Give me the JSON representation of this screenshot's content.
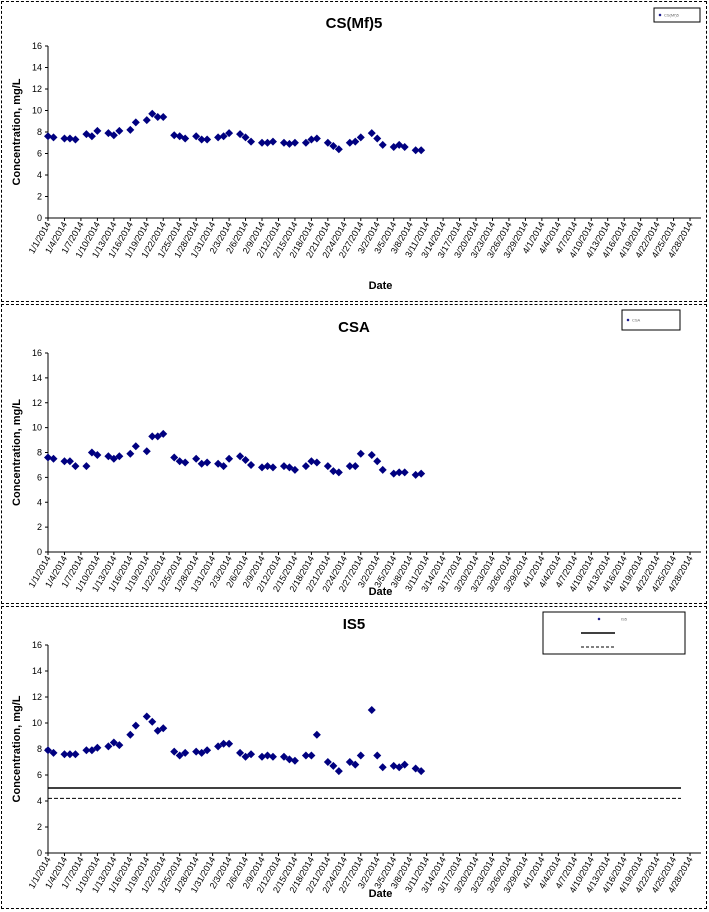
{
  "colors": {
    "marker": "#000080",
    "axis": "#000000",
    "limit": "#000000"
  },
  "chart_data": [
    {
      "type": "scatter",
      "title": "CS(Mf)5",
      "xlabel": "Date",
      "ylabel": "Concentration, mg/L",
      "ylim": [
        0,
        16
      ],
      "yticks": [
        "0",
        "2",
        "4",
        "6",
        "8",
        "10",
        "12",
        "14",
        "16"
      ],
      "xticks": [
        "1/1/2014",
        "1/4/2014",
        "1/7/2014",
        "1/10/2014",
        "1/13/2014",
        "1/16/2014",
        "1/19/2014",
        "1/22/2014",
        "1/25/2014",
        "1/28/2014",
        "1/31/2014",
        "2/3/2014",
        "2/6/2014",
        "2/9/2014",
        "2/12/2014",
        "2/15/2014",
        "2/18/2014",
        "2/21/2014",
        "2/24/2014",
        "2/27/2014",
        "3/2/2014",
        "3/5/2014",
        "3/8/2014",
        "3/11/2014",
        "3/14/2014",
        "3/17/2014",
        "3/20/2014",
        "3/23/2014",
        "3/26/2014",
        "3/29/2014",
        "4/1/2014",
        "4/4/2014",
        "4/7/2014",
        "4/10/2014",
        "4/13/2014",
        "4/16/2014",
        "4/19/2014",
        "4/22/2014",
        "4/25/2014",
        "4/28/2014"
      ],
      "legend": {
        "position": "top-right",
        "entries": [
          "CS(Mf)5"
        ]
      },
      "series": [
        {
          "name": "CS(Mf)5",
          "points": [
            [
              "2014-01-01",
              7.6
            ],
            [
              "2014-01-02",
              7.5
            ],
            [
              "2014-01-04",
              7.4
            ],
            [
              "2014-01-05",
              7.4
            ],
            [
              "2014-01-06",
              7.3
            ],
            [
              "2014-01-08",
              7.8
            ],
            [
              "2014-01-09",
              7.6
            ],
            [
              "2014-01-10",
              8.1
            ],
            [
              "2014-01-12",
              7.9
            ],
            [
              "2014-01-13",
              7.7
            ],
            [
              "2014-01-14",
              8.1
            ],
            [
              "2014-01-16",
              8.2
            ],
            [
              "2014-01-17",
              8.9
            ],
            [
              "2014-01-19",
              9.1
            ],
            [
              "2014-01-20",
              9.7
            ],
            [
              "2014-01-21",
              9.4
            ],
            [
              "2014-01-22",
              9.4
            ],
            [
              "2014-01-24",
              7.7
            ],
            [
              "2014-01-25",
              7.6
            ],
            [
              "2014-01-26",
              7.4
            ],
            [
              "2014-01-28",
              7.6
            ],
            [
              "2014-01-29",
              7.3
            ],
            [
              "2014-01-30",
              7.3
            ],
            [
              "2014-02-01",
              7.5
            ],
            [
              "2014-02-02",
              7.6
            ],
            [
              "2014-02-03",
              7.9
            ],
            [
              "2014-02-05",
              7.8
            ],
            [
              "2014-02-06",
              7.5
            ],
            [
              "2014-02-07",
              7.1
            ],
            [
              "2014-02-09",
              7.0
            ],
            [
              "2014-02-10",
              7.0
            ],
            [
              "2014-02-11",
              7.1
            ],
            [
              "2014-02-13",
              7.0
            ],
            [
              "2014-02-14",
              6.9
            ],
            [
              "2014-02-15",
              7.0
            ],
            [
              "2014-02-17",
              7.0
            ],
            [
              "2014-02-18",
              7.3
            ],
            [
              "2014-02-19",
              7.4
            ],
            [
              "2014-02-21",
              7.0
            ],
            [
              "2014-02-22",
              6.7
            ],
            [
              "2014-02-23",
              6.4
            ],
            [
              "2014-02-25",
              7.0
            ],
            [
              "2014-02-26",
              7.1
            ],
            [
              "2014-02-27",
              7.5
            ],
            [
              "2014-03-01",
              7.9
            ],
            [
              "2014-03-02",
              7.4
            ],
            [
              "2014-03-03",
              6.8
            ],
            [
              "2014-03-05",
              6.6
            ],
            [
              "2014-03-06",
              6.8
            ],
            [
              "2014-03-07",
              6.6
            ],
            [
              "2014-03-09",
              6.3
            ],
            [
              "2014-03-10",
              6.3
            ]
          ]
        }
      ]
    },
    {
      "type": "scatter",
      "title": "CSA",
      "xlabel": "Date",
      "ylabel": "Concentration, mg/L",
      "ylim": [
        0,
        16
      ],
      "yticks": [
        "0",
        "2",
        "4",
        "6",
        "8",
        "10",
        "12",
        "14",
        "16"
      ],
      "xticks": [
        "1/1/2014",
        "1/4/2014",
        "1/7/2014",
        "1/10/2014",
        "1/13/2014",
        "1/16/2014",
        "1/19/2014",
        "1/22/2014",
        "1/25/2014",
        "1/28/2014",
        "1/31/2014",
        "2/3/2014",
        "2/6/2014",
        "2/9/2014",
        "2/12/2014",
        "2/15/2014",
        "2/18/2014",
        "2/21/2014",
        "2/24/2014",
        "2/27/2014",
        "3/2/2014",
        "3/5/2014",
        "3/8/2014",
        "3/11/2014",
        "3/14/2014",
        "3/17/2014",
        "3/20/2014",
        "3/23/2014",
        "3/26/2014",
        "3/29/2014",
        "4/1/2014",
        "4/4/2014",
        "4/7/2014",
        "4/10/2014",
        "4/13/2014",
        "4/16/2014",
        "4/19/2014",
        "4/22/2014",
        "4/25/2014",
        "4/28/2014"
      ],
      "legend": {
        "position": "top-right",
        "entries": [
          "CSA"
        ]
      },
      "series": [
        {
          "name": "CSA",
          "points": [
            [
              "2014-01-01",
              7.6
            ],
            [
              "2014-01-02",
              7.5
            ],
            [
              "2014-01-04",
              7.3
            ],
            [
              "2014-01-05",
              7.3
            ],
            [
              "2014-01-06",
              6.9
            ],
            [
              "2014-01-08",
              6.9
            ],
            [
              "2014-01-09",
              8.0
            ],
            [
              "2014-01-10",
              7.8
            ],
            [
              "2014-01-12",
              7.7
            ],
            [
              "2014-01-13",
              7.5
            ],
            [
              "2014-01-14",
              7.7
            ],
            [
              "2014-01-16",
              7.9
            ],
            [
              "2014-01-17",
              8.5
            ],
            [
              "2014-01-19",
              8.1
            ],
            [
              "2014-01-20",
              9.3
            ],
            [
              "2014-01-21",
              9.3
            ],
            [
              "2014-01-22",
              9.5
            ],
            [
              "2014-01-24",
              7.6
            ],
            [
              "2014-01-25",
              7.3
            ],
            [
              "2014-01-26",
              7.2
            ],
            [
              "2014-01-28",
              7.5
            ],
            [
              "2014-01-29",
              7.1
            ],
            [
              "2014-01-30",
              7.2
            ],
            [
              "2014-02-01",
              7.1
            ],
            [
              "2014-02-02",
              6.9
            ],
            [
              "2014-02-03",
              7.5
            ],
            [
              "2014-02-05",
              7.7
            ],
            [
              "2014-02-06",
              7.4
            ],
            [
              "2014-02-07",
              7.0
            ],
            [
              "2014-02-09",
              6.8
            ],
            [
              "2014-02-10",
              6.9
            ],
            [
              "2014-02-11",
              6.8
            ],
            [
              "2014-02-13",
              6.9
            ],
            [
              "2014-02-14",
              6.8
            ],
            [
              "2014-02-15",
              6.6
            ],
            [
              "2014-02-17",
              6.9
            ],
            [
              "2014-02-18",
              7.3
            ],
            [
              "2014-02-19",
              7.2
            ],
            [
              "2014-02-21",
              6.9
            ],
            [
              "2014-02-22",
              6.5
            ],
            [
              "2014-02-23",
              6.4
            ],
            [
              "2014-02-25",
              6.9
            ],
            [
              "2014-02-26",
              6.9
            ],
            [
              "2014-02-27",
              7.9
            ],
            [
              "2014-03-01",
              7.8
            ],
            [
              "2014-03-02",
              7.3
            ],
            [
              "2014-03-03",
              6.6
            ],
            [
              "2014-03-05",
              6.3
            ],
            [
              "2014-03-06",
              6.4
            ],
            [
              "2014-03-07",
              6.4
            ],
            [
              "2014-03-09",
              6.2
            ],
            [
              "2014-03-10",
              6.3
            ]
          ]
        }
      ]
    },
    {
      "type": "scatter",
      "title": "IS5",
      "xlabel": "Date",
      "ylabel": "Concentration, mg/L",
      "ylim": [
        0,
        16
      ],
      "yticks": [
        "0",
        "2",
        "4",
        "6",
        "8",
        "10",
        "12",
        "14",
        "16"
      ],
      "xticks": [
        "1/1/2014",
        "1/4/2014",
        "1/7/2014",
        "1/10/2014",
        "1/13/2014",
        "1/16/2014",
        "1/19/2014",
        "1/22/2014",
        "1/25/2014",
        "1/28/2014",
        "1/31/2014",
        "2/3/2014",
        "2/6/2014",
        "2/9/2014",
        "2/12/2014",
        "2/15/2014",
        "2/18/2014",
        "2/21/2014",
        "2/24/2014",
        "2/27/2014",
        "3/2/2014",
        "3/5/2014",
        "3/8/2014",
        "3/11/2014",
        "3/14/2014",
        "3/17/2014",
        "3/20/2014",
        "3/23/2014",
        "3/26/2014",
        "3/29/2014",
        "4/1/2014",
        "4/4/2014",
        "4/7/2014",
        "4/10/2014",
        "4/13/2014",
        "4/16/2014",
        "4/19/2014",
        "4/22/2014",
        "4/25/2014",
        "4/28/2014"
      ],
      "legend": {
        "position": "top-right",
        "entries": [
          "IS5",
          "",
          ""
        ]
      },
      "hlines": [
        {
          "value": 5.0,
          "style": "solid"
        },
        {
          "value": 4.2,
          "style": "dashed"
        }
      ],
      "series": [
        {
          "name": "IS5",
          "points": [
            [
              "2014-01-01",
              7.9
            ],
            [
              "2014-01-02",
              7.7
            ],
            [
              "2014-01-04",
              7.6
            ],
            [
              "2014-01-05",
              7.6
            ],
            [
              "2014-01-06",
              7.6
            ],
            [
              "2014-01-08",
              7.9
            ],
            [
              "2014-01-09",
              7.9
            ],
            [
              "2014-01-10",
              8.1
            ],
            [
              "2014-01-12",
              8.2
            ],
            [
              "2014-01-13",
              8.5
            ],
            [
              "2014-01-14",
              8.3
            ],
            [
              "2014-01-16",
              9.1
            ],
            [
              "2014-01-17",
              9.8
            ],
            [
              "2014-01-19",
              10.5
            ],
            [
              "2014-01-20",
              10.1
            ],
            [
              "2014-01-21",
              9.4
            ],
            [
              "2014-01-22",
              9.6
            ],
            [
              "2014-01-24",
              7.8
            ],
            [
              "2014-01-25",
              7.5
            ],
            [
              "2014-01-26",
              7.7
            ],
            [
              "2014-01-28",
              7.8
            ],
            [
              "2014-01-29",
              7.7
            ],
            [
              "2014-01-30",
              7.9
            ],
            [
              "2014-02-01",
              8.2
            ],
            [
              "2014-02-02",
              8.4
            ],
            [
              "2014-02-03",
              8.4
            ],
            [
              "2014-02-05",
              7.7
            ],
            [
              "2014-02-06",
              7.4
            ],
            [
              "2014-02-07",
              7.6
            ],
            [
              "2014-02-09",
              7.4
            ],
            [
              "2014-02-10",
              7.5
            ],
            [
              "2014-02-11",
              7.4
            ],
            [
              "2014-02-13",
              7.4
            ],
            [
              "2014-02-14",
              7.2
            ],
            [
              "2014-02-15",
              7.1
            ],
            [
              "2014-02-17",
              7.5
            ],
            [
              "2014-02-18",
              7.5
            ],
            [
              "2014-02-19",
              9.1
            ],
            [
              "2014-02-21",
              7.0
            ],
            [
              "2014-02-22",
              6.7
            ],
            [
              "2014-02-23",
              6.3
            ],
            [
              "2014-02-25",
              7.0
            ],
            [
              "2014-02-26",
              6.8
            ],
            [
              "2014-02-27",
              7.5
            ],
            [
              "2014-03-01",
              11.0
            ],
            [
              "2014-03-02",
              7.5
            ],
            [
              "2014-03-03",
              6.6
            ],
            [
              "2014-03-05",
              6.7
            ],
            [
              "2014-03-06",
              6.6
            ],
            [
              "2014-03-07",
              6.8
            ],
            [
              "2014-03-09",
              6.5
            ],
            [
              "2014-03-10",
              6.3
            ]
          ]
        }
      ]
    }
  ]
}
